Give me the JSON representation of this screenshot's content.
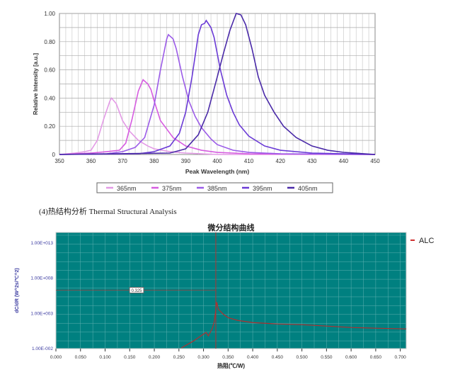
{
  "caption": "(4)热结构分析 Thermal Structural Analysis",
  "chart_data": [
    {
      "type": "line",
      "xlabel": "Peak Wavelength (nm)",
      "ylabel": "Relative Intensity [a.u.]",
      "xlim": [
        350,
        450
      ],
      "ylim": [
        0,
        1.0
      ],
      "xticks": [
        "350",
        "360",
        "370",
        "380",
        "390",
        "400",
        "410",
        "420",
        "430",
        "440",
        "450"
      ],
      "yticks": [
        "0",
        "0.20",
        "0.40",
        "0.60",
        "0.80",
        "1.00"
      ],
      "grid": true,
      "legend_position": "bottom",
      "series": [
        {
          "name": "365nm",
          "color": "#e39ae6",
          "points": [
            [
              350,
              0
            ],
            [
              355,
              0.01
            ],
            [
              358,
              0.02
            ],
            [
              360,
              0.03
            ],
            [
              362,
              0.1
            ],
            [
              364,
              0.25
            ],
            [
              366,
              0.38
            ],
            [
              366.5,
              0.4
            ],
            [
              368,
              0.36
            ],
            [
              369,
              0.3
            ],
            [
              370,
              0.24
            ],
            [
              372,
              0.17
            ],
            [
              375,
              0.1
            ],
            [
              378,
              0.06
            ],
            [
              380,
              0.04
            ],
            [
              385,
              0.02
            ],
            [
              390,
              0.01
            ],
            [
              400,
              0
            ],
            [
              450,
              0
            ]
          ]
        },
        {
          "name": "375nm",
          "color": "#d65ce0",
          "points": [
            [
              350,
              0
            ],
            [
              360,
              0.01
            ],
            [
              365,
              0.02
            ],
            [
              369,
              0.03
            ],
            [
              371,
              0.08
            ],
            [
              373,
              0.25
            ],
            [
              375,
              0.45
            ],
            [
              376.5,
              0.53
            ],
            [
              378,
              0.5
            ],
            [
              379,
              0.46
            ],
            [
              380,
              0.38
            ],
            [
              382,
              0.24
            ],
            [
              384,
              0.18
            ],
            [
              386,
              0.12
            ],
            [
              390,
              0.06
            ],
            [
              395,
              0.03
            ],
            [
              400,
              0.015
            ],
            [
              410,
              0.005
            ],
            [
              450,
              0
            ]
          ]
        },
        {
          "name": "385nm",
          "color": "#9b5be8",
          "points": [
            [
              350,
              0
            ],
            [
              365,
              0.005
            ],
            [
              370,
              0.02
            ],
            [
              374,
              0.05
            ],
            [
              377,
              0.12
            ],
            [
              380,
              0.35
            ],
            [
              382,
              0.6
            ],
            [
              384,
              0.82
            ],
            [
              384.5,
              0.85
            ],
            [
              386,
              0.82
            ],
            [
              387,
              0.75
            ],
            [
              389,
              0.55
            ],
            [
              391,
              0.38
            ],
            [
              393,
              0.27
            ],
            [
              395,
              0.19
            ],
            [
              398,
              0.11
            ],
            [
              400,
              0.07
            ],
            [
              405,
              0.03
            ],
            [
              410,
              0.015
            ],
            [
              420,
              0.005
            ],
            [
              450,
              0
            ]
          ]
        },
        {
          "name": "395nm",
          "color": "#6a3ad6",
          "points": [
            [
              350,
              0
            ],
            [
              375,
              0.005
            ],
            [
              380,
              0.02
            ],
            [
              385,
              0.06
            ],
            [
              388,
              0.15
            ],
            [
              390,
              0.3
            ],
            [
              392,
              0.55
            ],
            [
              394,
              0.85
            ],
            [
              395,
              0.92
            ],
            [
              396,
              0.93
            ],
            [
              396.5,
              0.95
            ],
            [
              398,
              0.9
            ],
            [
              399,
              0.83
            ],
            [
              401,
              0.6
            ],
            [
              403,
              0.42
            ],
            [
              405,
              0.3
            ],
            [
              407,
              0.21
            ],
            [
              410,
              0.13
            ],
            [
              415,
              0.06
            ],
            [
              420,
              0.03
            ],
            [
              430,
              0.01
            ],
            [
              450,
              0
            ]
          ]
        },
        {
          "name": "405nm",
          "color": "#4a2aa8",
          "points": [
            [
              350,
              0
            ],
            [
              385,
              0.01
            ],
            [
              390,
              0.04
            ],
            [
              394,
              0.14
            ],
            [
              397,
              0.3
            ],
            [
              400,
              0.55
            ],
            [
              402,
              0.72
            ],
            [
              404,
              0.88
            ],
            [
              406,
              1.0
            ],
            [
              407.5,
              0.99
            ],
            [
              409,
              0.92
            ],
            [
              411,
              0.75
            ],
            [
              413,
              0.55
            ],
            [
              415,
              0.42
            ],
            [
              418,
              0.3
            ],
            [
              421,
              0.2
            ],
            [
              425,
              0.12
            ],
            [
              430,
              0.06
            ],
            [
              435,
              0.03
            ],
            [
              440,
              0.015
            ],
            [
              450,
              0
            ]
          ]
        }
      ]
    },
    {
      "type": "line",
      "title": "微分结构曲线",
      "xlabel": "热阻(℃/W)",
      "ylabel": "dC/dR (W^2s/℃^2)",
      "xlim": [
        0,
        0.712
      ],
      "ylim_log10": [
        -2.1,
        14.4
      ],
      "y_scale": "log",
      "xticks": [
        "0.000",
        "0.050",
        "0.100",
        "0.150",
        "0.200",
        "0.250",
        "0.300",
        "0.350",
        "0.400",
        "0.450",
        "0.500",
        "0.550",
        "0.600",
        "0.650",
        "0.700"
      ],
      "yticks": [
        {
          "label": "1.00E-002",
          "log": -2
        },
        {
          "label": "1.00E+003",
          "log": 3
        },
        {
          "label": "1.00E+008",
          "log": 8
        },
        {
          "label": "1.00E+013",
          "log": 13
        }
      ],
      "background": "#008080",
      "grid": true,
      "legend_position": "right",
      "cursor": {
        "x": 0.325,
        "y_log10": 6.2,
        "label": "0.325"
      },
      "series": [
        {
          "name": "ALC",
          "color": "#b03030",
          "points_log10": [
            [
              0.255,
              -2
            ],
            [
              0.28,
              -1
            ],
            [
              0.305,
              0.2
            ],
            [
              0.31,
              -0.3
            ],
            [
              0.318,
              0.8
            ],
            [
              0.322,
              1.8
            ],
            [
              0.325,
              3.4
            ],
            [
              0.327,
              4.5
            ],
            [
              0.33,
              3.5
            ],
            [
              0.34,
              2.8
            ],
            [
              0.35,
              2.3
            ],
            [
              0.37,
              1.9
            ],
            [
              0.4,
              1.6
            ],
            [
              0.45,
              1.4
            ],
            [
              0.5,
              1.3
            ],
            [
              0.55,
              1.1
            ],
            [
              0.6,
              0.9
            ],
            [
              0.65,
              0.8
            ],
            [
              0.712,
              0.7
            ]
          ]
        }
      ]
    }
  ]
}
